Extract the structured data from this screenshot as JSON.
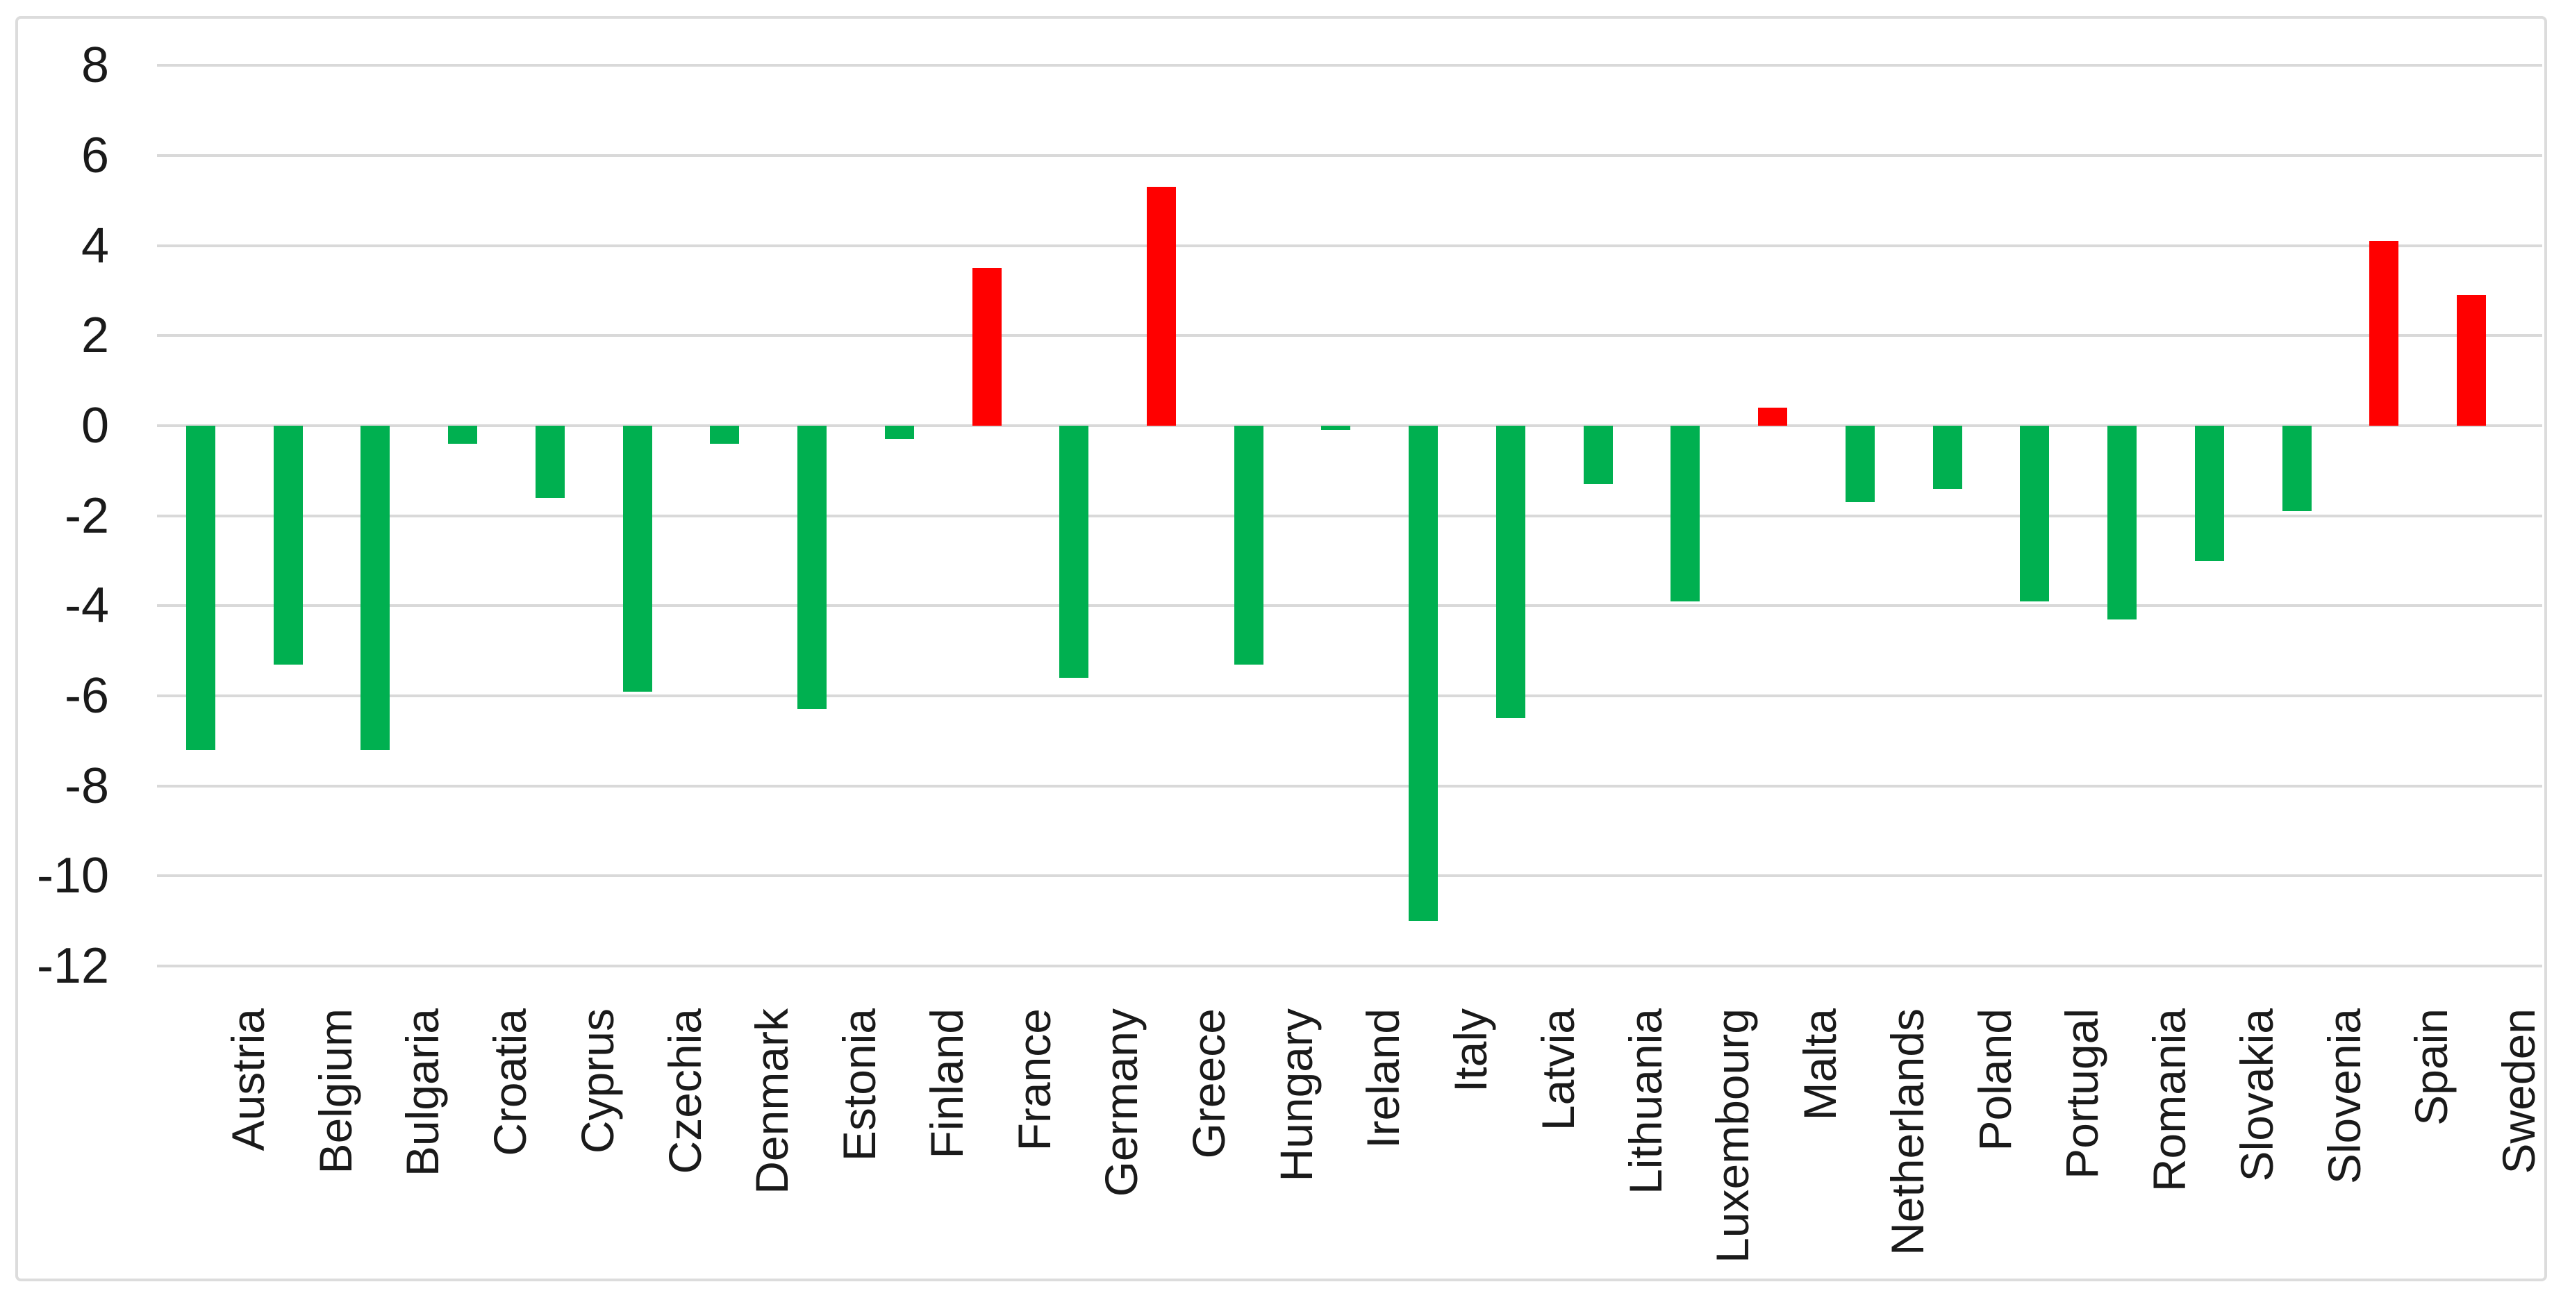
{
  "chart_data": {
    "type": "bar",
    "title": "",
    "xlabel": "",
    "ylabel": "",
    "categories": [
      "Austria",
      "Belgium",
      "Bulgaria",
      "Croatia",
      "Cyprus",
      "Czechia",
      "Denmark",
      "Estonia",
      "Finland",
      "France",
      "Germany",
      "Greece",
      "Hungary",
      "Ireland",
      "Italy",
      "Latvia",
      "Lithuania",
      "Luxembourg",
      "Malta",
      "Netherlands",
      "Poland",
      "Portugal",
      "Romania",
      "Slovakia",
      "Slovenia",
      "Spain",
      "Sweden"
    ],
    "values": [
      -7.2,
      -5.3,
      -7.2,
      -0.4,
      -1.6,
      -5.9,
      -0.4,
      -6.3,
      -0.3,
      3.5,
      -5.6,
      5.3,
      -5.3,
      -0.1,
      -11.0,
      -6.5,
      -1.3,
      -3.9,
      0.4,
      -1.7,
      -1.4,
      -3.9,
      -4.3,
      -3.0,
      -1.9,
      4.1,
      2.9
    ],
    "yticks": [
      8,
      6,
      4,
      2,
      0,
      -2,
      -4,
      -6,
      -8,
      -10,
      -12
    ],
    "ylim": [
      -12,
      8
    ],
    "grid": true,
    "legend": "none",
    "positive_color": "#ff0000",
    "negative_color": "#00b050",
    "gridline_color": "#d9d9d9",
    "frame_border_color": "#dcdcdc",
    "text_color": "#1a1a1a",
    "background_color": "#ffffff"
  }
}
